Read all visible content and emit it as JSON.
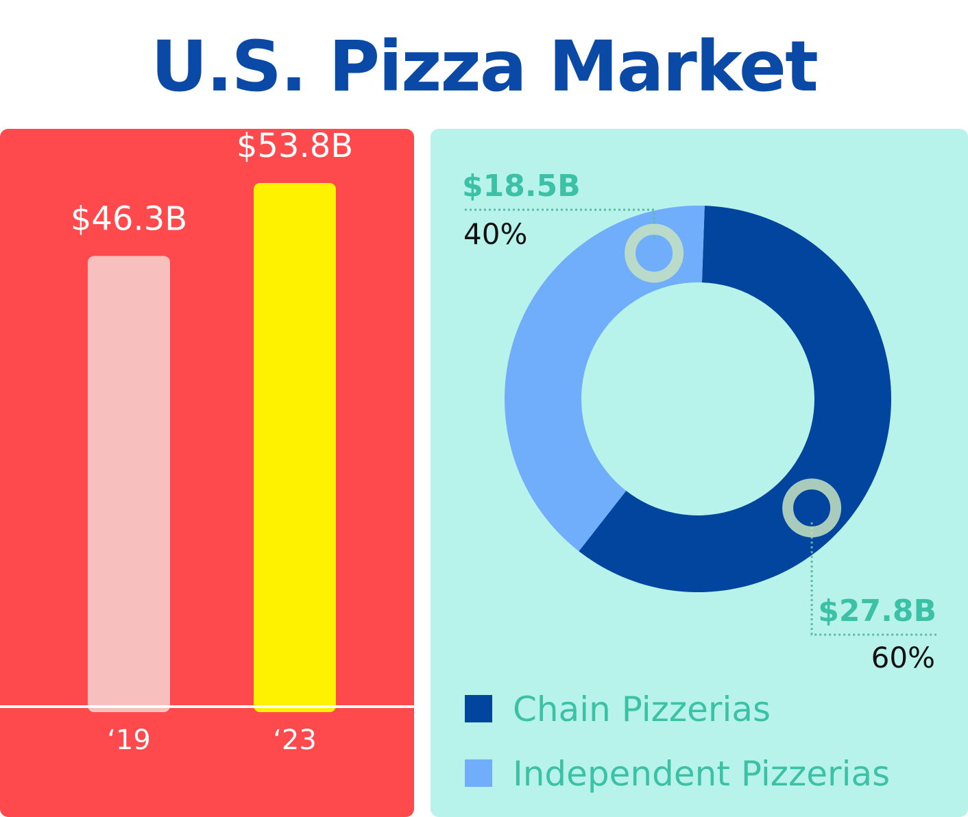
{
  "title": "U.S. Pizza Market",
  "colors": {
    "title": "#0a4aa6",
    "bar_panel_bg": "#ff4a4d",
    "donut_panel_bg": "#b8f3eb",
    "bar_2019": "#f8bfbf",
    "bar_2023": "#fff200",
    "chain": "#02459e",
    "independent": "#70adfa",
    "callout_value": "#3cc1a7",
    "callout_percent": "#111111"
  },
  "chart_data": [
    {
      "type": "bar",
      "categories": [
        "‘19",
        "‘23"
      ],
      "values": [
        46.3,
        53.8
      ],
      "value_labels": [
        "$46.3B",
        "$53.8B"
      ],
      "unit": "billion USD",
      "axis_min": 0,
      "grid": false
    },
    {
      "type": "pie",
      "variant": "donut",
      "slices": [
        {
          "name": "Chain Pizzerias",
          "value": 27.8,
          "value_label": "$27.8B",
          "percent": 60,
          "percent_label": "60%",
          "color": "#02459e"
        },
        {
          "name": "Independent Pizzerias",
          "value": 18.5,
          "value_label": "$18.5B",
          "percent": 40,
          "percent_label": "40%",
          "color": "#70adfa"
        }
      ],
      "legend": {
        "position": "bottom-left",
        "items": [
          {
            "label": "Chain Pizzerias",
            "color": "#02459e"
          },
          {
            "label": "Independent Pizzerias",
            "color": "#70adfa"
          }
        ]
      }
    }
  ]
}
